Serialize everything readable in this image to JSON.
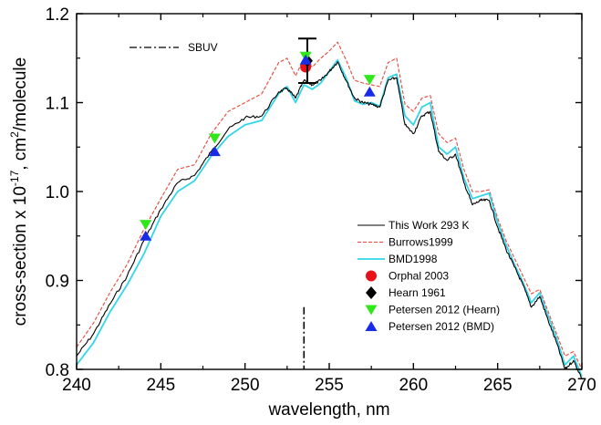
{
  "chart_data": {
    "type": "line",
    "xlabel": "wavelength, nm",
    "ylabel_prefix": "cross-section x 10",
    "ylabel_exp": "-17",
    "ylabel_mid": ", cm",
    "ylabel_sq": "2",
    "ylabel_suffix": "/molecule",
    "xlim": [
      240,
      270
    ],
    "ylim": [
      0.8,
      1.2
    ],
    "x_ticks": [
      240,
      245,
      250,
      255,
      260,
      265,
      270
    ],
    "x_tick_labels": [
      "240",
      "245",
      "250",
      "255",
      "260",
      "265",
      "270"
    ],
    "y_ticks": [
      0.8,
      0.9,
      1.0,
      1.1,
      1.2
    ],
    "y_tick_labels": [
      "0.8",
      "0.9",
      "1.0",
      "1.1",
      "1.2"
    ],
    "grid": false,
    "legend_position": "bottom-right",
    "annotation": {
      "label": "SBUV",
      "x": 253.5,
      "y_range": [
        0.8,
        0.87
      ]
    },
    "series": [
      {
        "name": "This Work 293 K",
        "style": "solid",
        "color": "#000000",
        "x": [
          240,
          241,
          242,
          243,
          244,
          245,
          246,
          247,
          248,
          249,
          250,
          251,
          252,
          252.5,
          253,
          253.5,
          254,
          254.5,
          255,
          255.5,
          256,
          256.5,
          257,
          257.5,
          258,
          258.5,
          259,
          259.5,
          260,
          260.5,
          261,
          261.5,
          262,
          262.5,
          263,
          263.5,
          264,
          264.5,
          265,
          265.5,
          266,
          266.5,
          267,
          267.5,
          268,
          268.5,
          269,
          269.5,
          270
        ],
        "y": [
          0.815,
          0.84,
          0.874,
          0.905,
          0.945,
          0.98,
          1.01,
          1.018,
          1.045,
          1.07,
          1.083,
          1.085,
          1.112,
          1.116,
          1.105,
          1.125,
          1.12,
          1.125,
          1.135,
          1.146,
          1.125,
          1.105,
          1.1,
          1.098,
          1.095,
          1.125,
          1.128,
          1.075,
          1.065,
          1.085,
          1.09,
          1.045,
          1.035,
          1.042,
          1.01,
          0.985,
          0.99,
          0.99,
          0.96,
          0.935,
          0.915,
          0.895,
          0.87,
          0.882,
          0.855,
          0.83,
          0.8,
          0.81,
          0.79
        ]
      },
      {
        "name": "Burrows1999",
        "style": "dashed",
        "color": "#e8483c",
        "x": [
          240,
          241,
          242,
          243,
          244,
          245,
          246,
          247,
          248,
          249,
          250,
          251,
          252,
          252.5,
          253,
          253.5,
          254,
          254.5,
          255,
          255.5,
          256,
          256.5,
          257,
          257.5,
          258,
          258.5,
          259,
          259.5,
          260,
          260.5,
          261,
          261.5,
          262,
          262.5,
          263,
          263.5,
          264,
          264.5,
          265,
          265.5,
          266,
          266.5,
          267,
          267.5,
          268,
          268.5,
          269,
          269.5,
          270
        ],
        "y": [
          0.825,
          0.852,
          0.887,
          0.918,
          0.958,
          0.992,
          1.025,
          1.03,
          1.065,
          1.09,
          1.1,
          1.11,
          1.145,
          1.15,
          1.13,
          1.15,
          1.14,
          1.15,
          1.158,
          1.168,
          1.148,
          1.125,
          1.122,
          1.12,
          1.118,
          1.145,
          1.15,
          1.098,
          1.09,
          1.105,
          1.108,
          1.065,
          1.055,
          1.06,
          1.025,
          1.0,
          1.0,
          1.002,
          0.97,
          0.945,
          0.925,
          0.905,
          0.885,
          0.89,
          0.865,
          0.84,
          0.815,
          0.82,
          0.8
        ]
      },
      {
        "name": "BMD1998",
        "style": "solid",
        "color": "#33d6e8",
        "x": [
          240,
          241,
          242,
          243,
          244,
          245,
          246,
          247,
          248,
          249,
          250,
          251,
          252,
          252.5,
          253,
          253.5,
          254,
          254.5,
          255,
          255.5,
          256,
          256.5,
          257,
          257.5,
          258,
          258.5,
          259,
          259.5,
          260,
          260.5,
          261,
          261.5,
          262,
          262.5,
          263,
          263.5,
          264,
          264.5,
          265,
          265.5,
          266,
          266.5,
          267,
          267.5,
          268,
          268.5,
          269,
          269.5,
          270
        ],
        "y": [
          0.805,
          0.83,
          0.865,
          0.895,
          0.93,
          0.972,
          1.0,
          1.012,
          1.04,
          1.062,
          1.075,
          1.08,
          1.11,
          1.118,
          1.1,
          1.12,
          1.115,
          1.122,
          1.135,
          1.148,
          1.128,
          1.102,
          1.098,
          1.1,
          1.096,
          1.128,
          1.132,
          1.085,
          1.075,
          1.095,
          1.1,
          1.05,
          1.042,
          1.05,
          1.015,
          0.992,
          0.995,
          0.998,
          0.965,
          0.94,
          0.918,
          0.898,
          0.875,
          0.886,
          0.86,
          0.835,
          0.805,
          0.815,
          0.792
        ]
      }
    ],
    "points": [
      {
        "name": "Orphal 2003",
        "marker": "circle",
        "color": "#e8101a",
        "x": 253.6,
        "y": 1.14
      },
      {
        "name": "Hearn 1961",
        "marker": "diamond",
        "color": "#000000",
        "x": 253.7,
        "y": 1.147,
        "yerr": 0.025
      },
      {
        "name": "Petersen 2012 (Hearn)",
        "marker": "triangle-down",
        "color": "#2ee81a",
        "xs": [
          244.1,
          248.2,
          253.6,
          257.4
        ],
        "ys": [
          0.963,
          1.06,
          1.152,
          1.126
        ]
      },
      {
        "name": "Petersen 2012 (BMD)",
        "marker": "triangle-up",
        "color": "#1a2be8",
        "xs": [
          244.1,
          248.2,
          253.6,
          257.4
        ],
        "ys": [
          0.95,
          1.045,
          1.148,
          1.112
        ]
      }
    ]
  }
}
